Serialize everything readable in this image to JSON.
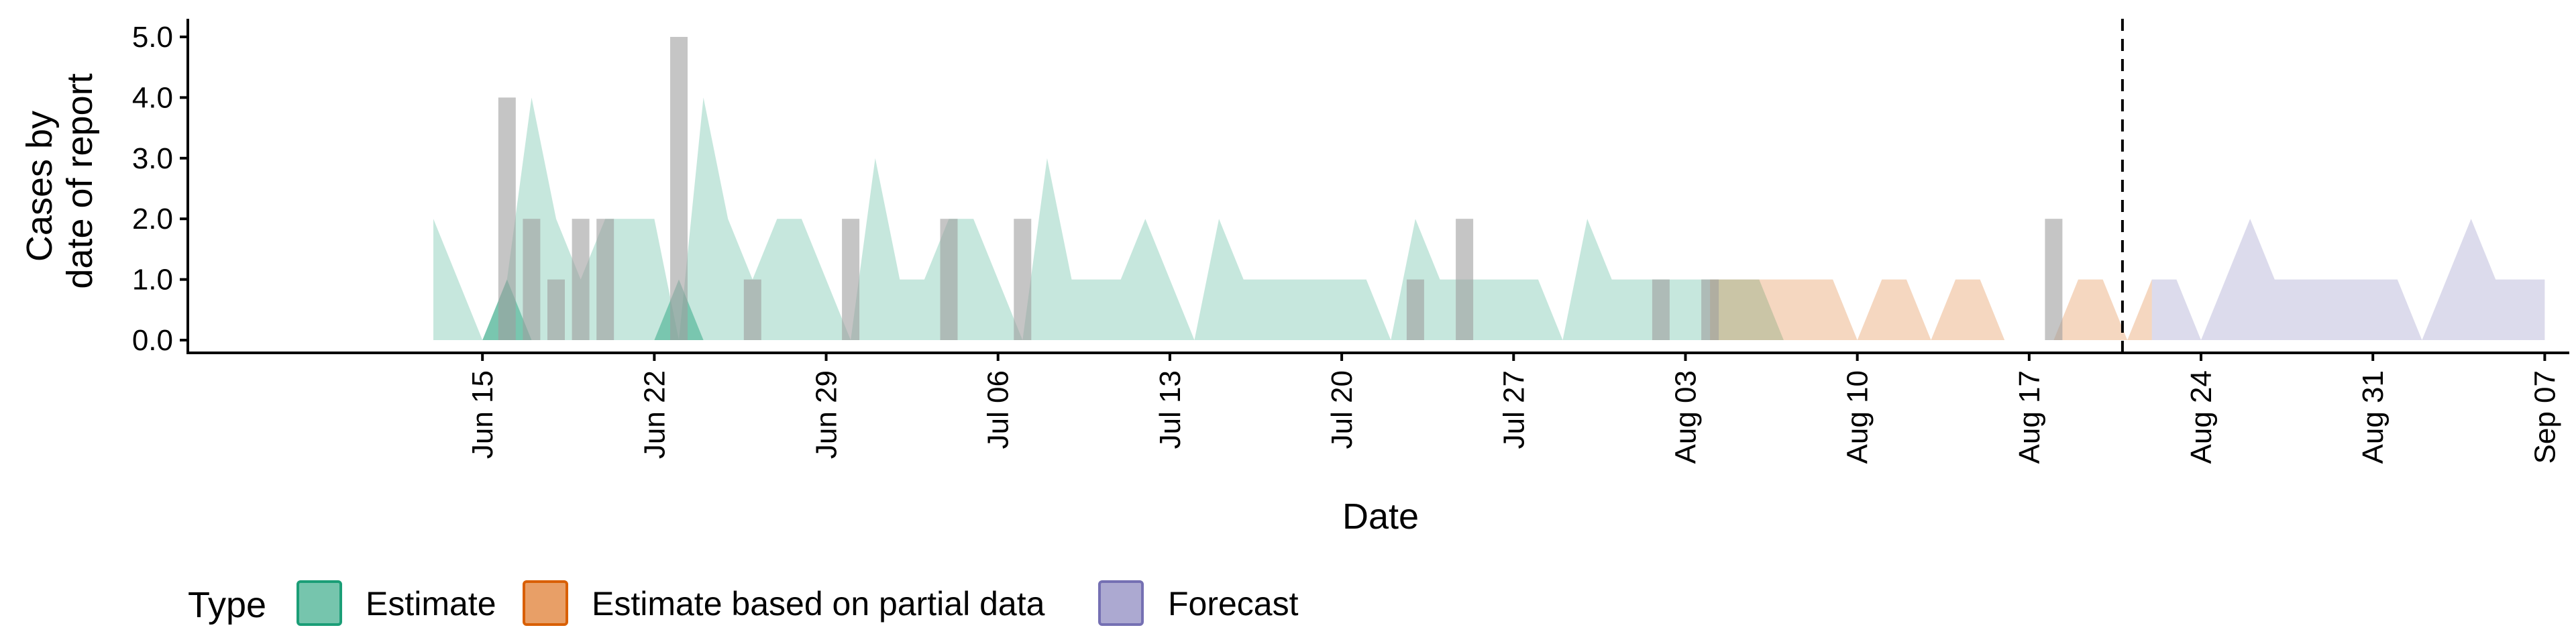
{
  "chart_data": {
    "type": "area",
    "xlabel": "Date",
    "ylabel_lines": [
      "Cases by",
      "date of report"
    ],
    "ylim": [
      0,
      5.0
    ],
    "yticks": [
      0,
      1,
      2,
      3,
      4,
      5
    ],
    "ytick_labels": [
      "0.0",
      "1.0",
      "2.0",
      "3.0",
      "4.0",
      "5.0"
    ],
    "xlim": [
      "2022-06-03",
      "2022-09-08"
    ],
    "xticks": [
      {
        "date": "2022-06-15",
        "label": "Jun 15"
      },
      {
        "date": "2022-06-22",
        "label": "Jun 22"
      },
      {
        "date": "2022-06-29",
        "label": "Jun 29"
      },
      {
        "date": "2022-07-06",
        "label": "Jul 06"
      },
      {
        "date": "2022-07-13",
        "label": "Jul 13"
      },
      {
        "date": "2022-07-20",
        "label": "Jul 20"
      },
      {
        "date": "2022-07-27",
        "label": "Jul 27"
      },
      {
        "date": "2022-08-03",
        "label": "Aug 03"
      },
      {
        "date": "2022-08-10",
        "label": "Aug 10"
      },
      {
        "date": "2022-08-17",
        "label": "Aug 17"
      },
      {
        "date": "2022-08-24",
        "label": "Aug 24"
      },
      {
        "date": "2022-08-31",
        "label": "Aug 31"
      },
      {
        "date": "2022-09-07",
        "label": "Sep 07"
      }
    ],
    "vline_date": "2022-08-20.8",
    "legend": {
      "title": "Type",
      "position": "bottom",
      "items": [
        {
          "label": "Estimate",
          "color": "#1b9e77"
        },
        {
          "label": "Estimate based on partial data",
          "color": "#d95f02"
        },
        {
          "label": "Forecast",
          "color": "#7570b3"
        }
      ]
    },
    "ribbons": [
      {
        "name": "Estimate",
        "color": "#1b9e77",
        "opacity": 0.25,
        "start": "2022-06-13",
        "lower": 0,
        "upper": [
          2,
          1,
          0,
          1,
          4,
          2,
          1,
          2,
          2,
          2,
          0,
          4,
          2,
          1,
          2,
          2,
          1,
          0,
          3,
          1,
          1,
          2,
          2,
          1,
          0,
          3,
          1,
          1,
          1,
          2,
          1,
          0,
          2,
          1,
          1,
          1,
          1,
          1,
          1,
          0,
          2,
          1,
          1,
          1,
          1,
          1,
          0,
          2,
          1,
          1,
          1,
          1,
          1,
          1,
          1,
          0
        ]
      },
      {
        "name": "Estimate",
        "color": "#1b9e77",
        "opacity": 0.45,
        "points": [
          [
            "2022-06-15",
            0
          ],
          [
            "2022-06-16",
            1
          ],
          [
            "2022-06-17",
            0
          ]
        ]
      },
      {
        "name": "Estimate",
        "color": "#1b9e77",
        "opacity": 0.45,
        "points": [
          [
            "2022-06-22",
            0
          ],
          [
            "2022-06-23",
            1
          ],
          [
            "2022-06-24",
            0
          ]
        ]
      },
      {
        "name": "Estimate based on partial data",
        "color": "#d95f02",
        "opacity": 0.25,
        "start": "2022-08-04",
        "lower": 0,
        "upper": [
          1,
          1,
          1,
          1,
          1,
          1,
          0,
          1,
          1,
          0,
          1,
          1,
          0,
          0,
          0,
          1,
          1,
          0,
          1
        ]
      },
      {
        "name": "Forecast",
        "color": "#7570b3",
        "opacity": 0.25,
        "start": "2022-08-22",
        "lower": 0,
        "upper": [
          1,
          1,
          0,
          1,
          2,
          1,
          1,
          1,
          1,
          1,
          1,
          0,
          1,
          2,
          1,
          1,
          1
        ]
      }
    ],
    "reported_cases": {
      "color": "#9e9e9e",
      "points": [
        {
          "date": "2022-06-16",
          "value": 4
        },
        {
          "date": "2022-06-17",
          "value": 2
        },
        {
          "date": "2022-06-18",
          "value": 1
        },
        {
          "date": "2022-06-19",
          "value": 2
        },
        {
          "date": "2022-06-20",
          "value": 2
        },
        {
          "date": "2022-06-23",
          "value": 5
        },
        {
          "date": "2022-06-26",
          "value": 1
        },
        {
          "date": "2022-06-30",
          "value": 2
        },
        {
          "date": "2022-07-04",
          "value": 2
        },
        {
          "date": "2022-07-07",
          "value": 2
        },
        {
          "date": "2022-07-23",
          "value": 1
        },
        {
          "date": "2022-07-25",
          "value": 2
        },
        {
          "date": "2022-08-02",
          "value": 1
        },
        {
          "date": "2022-08-04",
          "value": 1
        },
        {
          "date": "2022-08-18",
          "value": 2
        }
      ]
    }
  }
}
